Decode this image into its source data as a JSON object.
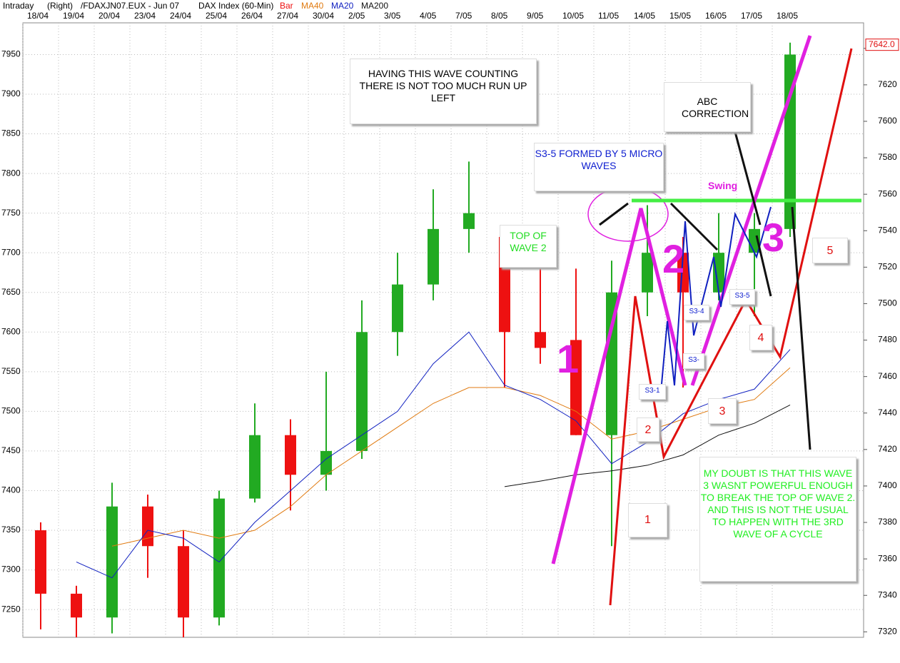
{
  "chart_data": {
    "type": "candlestick",
    "header": [
      "Intraday",
      "(Right)",
      "/FDAXJN07.EUX - Jun 07",
      "DAX Index (60-Min)"
    ],
    "bar_name": "Bar",
    "bar_colors": {
      "up": "#22aa22",
      "down": "#ee1111"
    },
    "categories": [
      "18/04",
      "19/04",
      "20/04",
      "23/04",
      "24/04",
      "25/04",
      "26/04",
      "27/04",
      "30/04",
      "2/05",
      "3/05",
      "4/05",
      "7/05",
      "8/05",
      "9/05",
      "10/05",
      "11/05",
      "14/05",
      "15/05",
      "16/05",
      "17/05",
      "18/05"
    ],
    "open": [
      7350,
      7270,
      7240,
      7380,
      7330,
      7240,
      7390,
      7470,
      7420,
      7450,
      7600,
      7660,
      7730,
      7720,
      7600,
      7590,
      7470,
      7650,
      7700,
      7650,
      7700,
      7730
    ],
    "high": [
      7360,
      7280,
      7410,
      7395,
      7350,
      7400,
      7510,
      7490,
      7550,
      7640,
      7700,
      7780,
      7815,
      7730,
      7680,
      7680,
      7690,
      7760,
      7720,
      7750,
      7750,
      7965
    ],
    "low": [
      7225,
      7215,
      7220,
      7290,
      7215,
      7230,
      7385,
      7375,
      7400,
      7440,
      7570,
      7640,
      7700,
      7530,
      7560,
      7470,
      7330,
      7620,
      7530,
      7640,
      7620,
      7720
    ],
    "close": [
      7270,
      7240,
      7380,
      7330,
      7240,
      7390,
      7470,
      7420,
      7450,
      7600,
      7660,
      7730,
      7750,
      7600,
      7580,
      7470,
      7650,
      7700,
      7650,
      7700,
      7730,
      7950
    ],
    "series": [
      {
        "name": "MA40",
        "color": "#e07a10",
        "values": [
          null,
          null,
          7330,
          7340,
          7350,
          7340,
          7350,
          7380,
          7420,
          7450,
          7480,
          7510,
          7530,
          7530,
          7520,
          7500,
          7465,
          7475,
          7490,
          7505,
          7515,
          7555
        ]
      },
      {
        "name": "MA20",
        "color": "#1020c0",
        "values": [
          null,
          7310,
          7290,
          7350,
          7340,
          7310,
          7360,
          7400,
          7440,
          7470,
          7500,
          7560,
          7600,
          7533,
          7515,
          7488,
          7434,
          7461,
          7497,
          7515,
          7528,
          7578
        ]
      },
      {
        "name": "MA200",
        "color": "#111111",
        "values": [
          null,
          null,
          null,
          null,
          null,
          null,
          null,
          null,
          null,
          null,
          null,
          null,
          null,
          7405,
          7412,
          7420,
          7425,
          7432,
          7445,
          7470,
          7485,
          7508
        ]
      }
    ],
    "ylim": [
      7215,
      7990
    ],
    "yticks": [
      7250,
      7300,
      7350,
      7400,
      7450,
      7500,
      7550,
      7600,
      7650,
      7700,
      7750,
      7800,
      7850,
      7900,
      7950
    ],
    "y2lim": [
      7317,
      7654
    ],
    "y2ticks": [
      7320,
      7340,
      7360,
      7380,
      7400,
      7420,
      7440,
      7460,
      7480,
      7500,
      7520,
      7540,
      7560,
      7580,
      7600,
      7620,
      7640
    ],
    "last_price": {
      "value": 7642,
      "label": "7642.0"
    },
    "grid": true,
    "annotations": [
      "HAVING THIS WAVE COUNTING THERE IS NOT TOO MUCH RUN UP LEFT",
      "ABC CORRECTION",
      "S3-5 FORMED BY 5 MICRO WAVES",
      "TOP OF WAVE 2",
      "Swing",
      "MY DOUBT IS THAT THIS WAVE 3 WASNT POWERFUL ENOUGH TO BREAK THE TOP OF WAVE 2. AND THIS IS NOT THE USUAL TO HAPPEN WITH THE 3RD WAVE OF A CYCLE",
      "1",
      "2",
      "3",
      "1",
      "2",
      "3",
      "4",
      "5",
      "S3-1",
      "S3-",
      "S3-4",
      "S3-5"
    ]
  }
}
